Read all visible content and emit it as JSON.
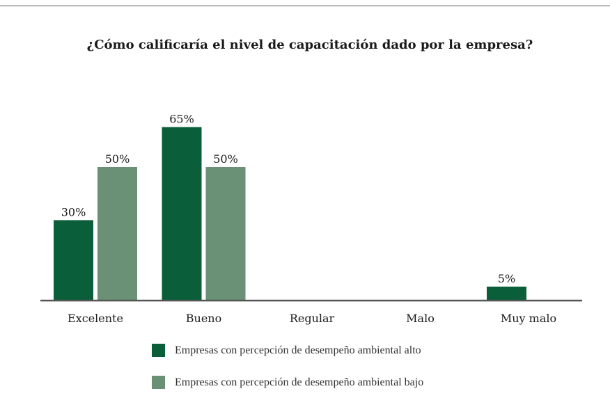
{
  "chart_data": {
    "type": "bar",
    "title": "¿Cómo calificaría el nivel de capacitación dado por la empresa?",
    "categories": [
      "Excelente",
      "Bueno",
      "Regular",
      "Malo",
      "Muy malo"
    ],
    "series": [
      {
        "name": "Empresas con percepción de desempeño ambiental alto",
        "color": "#0b5e3a",
        "values": [
          30,
          65,
          null,
          null,
          5
        ],
        "labels": [
          "30%",
          "65%",
          "",
          "",
          "5%"
        ]
      },
      {
        "name": "Empresas con percepción de desempeño ambiental bajo",
        "color": "#6a9175",
        "values": [
          50,
          50,
          null,
          null,
          null
        ],
        "labels": [
          "50%",
          "50%",
          "",
          "",
          ""
        ]
      }
    ],
    "ylim": [
      0,
      70
    ],
    "grid": false,
    "legend": "bottom"
  }
}
